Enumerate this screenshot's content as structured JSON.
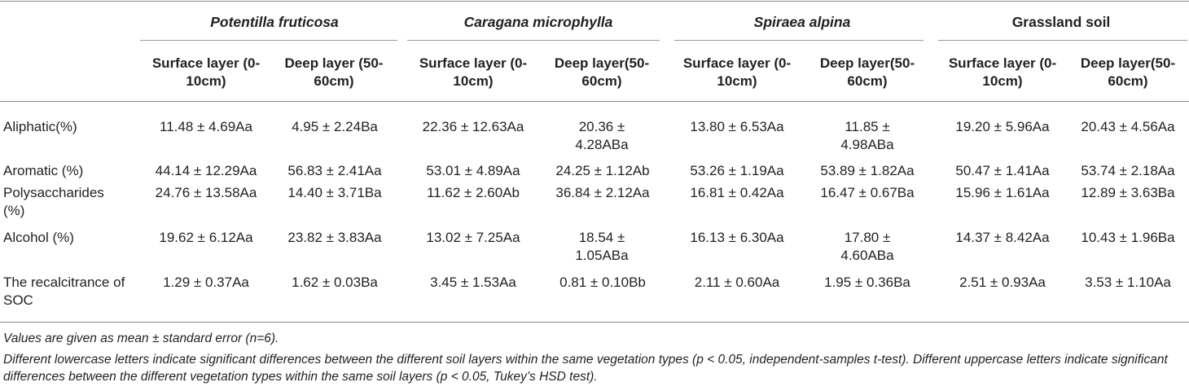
{
  "table": {
    "groups": [
      {
        "label": "Potentilla fruticosa",
        "italic": true
      },
      {
        "label": "Caragana microphylla",
        "italic": true
      },
      {
        "label": "Spiraea alpina",
        "italic": true
      },
      {
        "label": "Grassland soil",
        "italic": false
      }
    ],
    "subheaders": [
      "Surface layer (0-10cm)",
      "Deep layer (50-60cm)",
      "Surface layer (0-10cm)",
      "Deep layer(50-60cm)",
      "Surface layer (0-10cm)",
      "Deep layer(50-60cm)",
      "Surface layer (0-10cm)",
      "Deep layer(50-60cm)"
    ],
    "rows": [
      {
        "label": "Aliphatic(%)",
        "values": [
          "11.48 ± 4.69Aa",
          "4.95 ± 2.24Ba",
          "22.36 ± 12.63Aa",
          "20.36 ± 4.28ABa",
          "13.80 ± 6.53Aa",
          "11.85 ± 4.98ABa",
          "19.20 ± 5.96Aa",
          "20.43 ± 4.56Aa"
        ]
      },
      {
        "label": "Aromatic (%)",
        "values": [
          "44.14 ± 12.29Aa",
          "56.83 ± 2.41Aa",
          "53.01 ± 4.89Aa",
          "24.25 ± 1.12Ab",
          "53.26 ± 1.19Aa",
          "53.89 ± 1.82Aa",
          "50.47 ± 1.41Aa",
          "53.74 ± 2.18Aa"
        ]
      },
      {
        "label": "Polysaccharides (%)",
        "values": [
          "24.76 ± 13.58Aa",
          "14.40 ± 3.71Ba",
          "11.62 ± 2.60Ab",
          "36.84 ± 2.12Aa",
          "16.81 ± 0.42Aa",
          "16.47 ± 0.67Ba",
          "15.96 ± 1.61Aa",
          "12.89 ± 3.63Ba"
        ]
      },
      {
        "label": "Alcohol (%)",
        "values": [
          "19.62 ± 6.12Aa",
          "23.82 ± 3.83Aa",
          "13.02 ± 7.25Aa",
          "18.54 ± 1.05ABa",
          "16.13 ± 6.30Aa",
          "17.80 ± 4.60ABa",
          "14.37 ± 8.42Aa",
          "10.43 ± 1.96Ba"
        ]
      },
      {
        "label": "The recalcitrance of SOC",
        "values": [
          "1.29 ± 0.37Aa",
          "1.62 ± 0.03Ba",
          "3.45 ± 1.53Aa",
          "0.81 ± 0.10Bb",
          "2.11 ± 0.60Aa",
          "1.95 ± 0.36Ba",
          "2.51 ± 0.93Aa",
          "3.53 ± 1.10Aa"
        ]
      }
    ],
    "footnotes": [
      "Values are given as mean ± standard error (n=6).",
      "Different lowercase letters indicate significant differences between the different soil layers within the same vegetation types (p < 0.05, independent-samples t-test). Different uppercase letters indicate significant differences between the different vegetation types within the same soil layers (p < 0.05, Tukey’s HSD test)."
    ]
  }
}
